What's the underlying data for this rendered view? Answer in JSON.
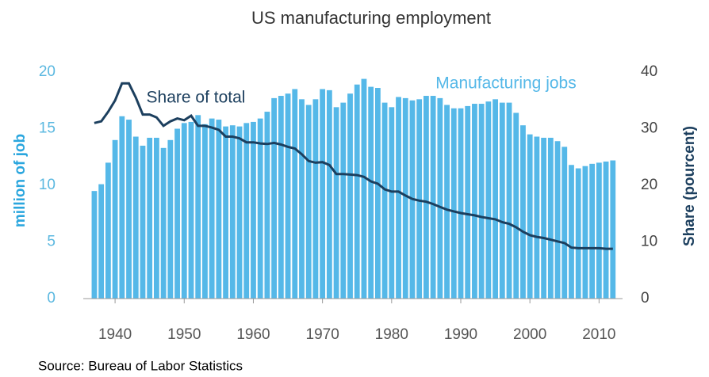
{
  "chart_data": {
    "type": "bar",
    "title": "US manufacturing employment",
    "y_label": "million of job",
    "y2_label": "Share (pourcent)",
    "source": "Source: Bureau of Labor Statistics",
    "x": [
      1937,
      1938,
      1939,
      1940,
      1941,
      1942,
      1943,
      1944,
      1945,
      1946,
      1947,
      1948,
      1949,
      1950,
      1951,
      1952,
      1953,
      1954,
      1955,
      1956,
      1957,
      1958,
      1959,
      1960,
      1961,
      1962,
      1963,
      1964,
      1965,
      1966,
      1967,
      1968,
      1969,
      1970,
      1971,
      1972,
      1973,
      1974,
      1975,
      1976,
      1977,
      1978,
      1979,
      1980,
      1981,
      1982,
      1983,
      1984,
      1985,
      1986,
      1987,
      1988,
      1989,
      1990,
      1991,
      1992,
      1993,
      1994,
      1995,
      1996,
      1997,
      1998,
      1999,
      2000,
      2001,
      2002,
      2003,
      2004,
      2005,
      2006,
      2007,
      2008,
      2009,
      2010,
      2011,
      2012
    ],
    "series": [
      {
        "name": "Manufacturing jobs",
        "color": "#55b8e8",
        "axis": "y",
        "values": [
          9.5,
          10.1,
          12.0,
          14.0,
          16.1,
          15.8,
          14.3,
          13.5,
          14.2,
          14.2,
          13.3,
          14.0,
          15.0,
          15.5,
          15.6,
          16.2,
          15.4,
          15.9,
          15.8,
          15.2,
          15.3,
          15.2,
          15.5,
          15.6,
          15.9,
          16.5,
          17.7,
          17.9,
          18.1,
          18.5,
          17.6,
          17.1,
          17.6,
          18.5,
          18.4,
          16.9,
          17.3,
          18.1,
          18.9,
          19.4,
          18.7,
          18.6,
          17.3,
          16.9,
          17.8,
          17.7,
          17.5,
          17.6,
          17.9,
          17.9,
          17.7,
          17.1,
          16.8,
          16.8,
          17.0,
          17.2,
          17.2,
          17.4,
          17.6,
          17.3,
          17.3,
          16.4,
          15.3,
          14.5,
          14.3,
          14.2,
          14.2,
          13.9,
          13.4,
          11.8,
          11.5,
          11.7,
          11.9,
          12.0,
          12.1,
          12.2
        ]
      },
      {
        "name": "Share of total",
        "color": "#1c3f5e",
        "axis": "y2",
        "values": [
          31,
          31.3,
          33,
          35,
          38,
          38,
          35.5,
          32.5,
          32.5,
          32,
          30.5,
          31.3,
          31.8,
          31.5,
          32.3,
          30.5,
          30.5,
          30.2,
          29.8,
          28.6,
          28.6,
          28.3,
          27.6,
          27.6,
          27.4,
          27.3,
          27.5,
          27.2,
          26.8,
          26.5,
          25.5,
          24.3,
          24.0,
          24.1,
          23.6,
          22.0,
          22.0,
          21.9,
          21.8,
          21.5,
          20.7,
          20.3,
          19.3,
          18.9,
          18.9,
          18.2,
          17.6,
          17.3,
          17.1,
          16.7,
          16.2,
          15.7,
          15.4,
          15.1,
          14.9,
          14.7,
          14.4,
          14.2,
          14.0,
          13.5,
          13.2,
          12.6,
          11.8,
          11.2,
          10.9,
          10.7,
          10.4,
          10.1,
          9.8,
          9.0,
          8.9,
          8.9,
          8.9,
          8.9,
          8.8,
          8.8
        ]
      }
    ],
    "xlim": [
      1935.4,
      2013.4
    ],
    "xticks": [
      1940,
      1950,
      1960,
      1970,
      1980,
      1990,
      2000,
      2010
    ],
    "ylim": [
      0,
      20
    ],
    "yticks": [
      0,
      5,
      10,
      15,
      20
    ],
    "y2lim": [
      0,
      40
    ],
    "y2ticks": [
      0,
      10,
      20,
      30,
      40
    ]
  }
}
